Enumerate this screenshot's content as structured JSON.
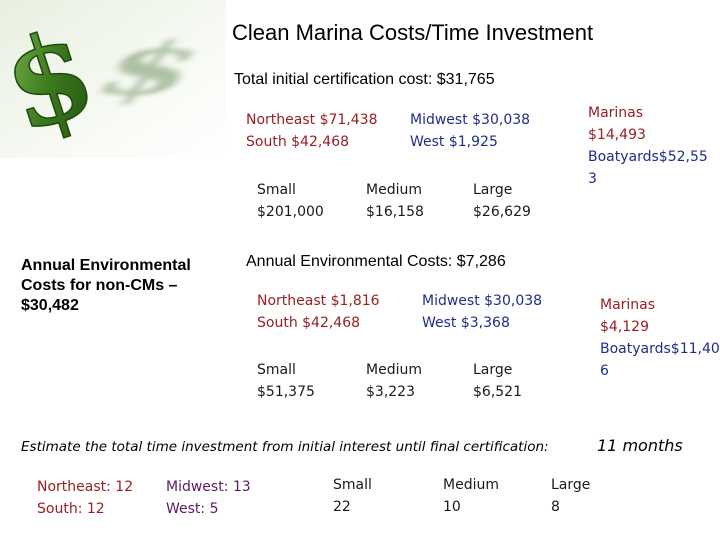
{
  "title": "Clean Marina Costs/Time Investment",
  "initial": {
    "heading": "Total initial certification cost: $31,765",
    "northeast": "Northeast $71,438",
    "south": "South $42,468",
    "midwest": "Midwest $30,038",
    "west": "West $1,925",
    "small_label": "Small",
    "small_value": "$201,000",
    "medium_label": "Medium",
    "medium_value": "$16,158",
    "large_label": "Large",
    "large_value": "$26,629",
    "marinas": "Marinas\n$14,493",
    "boatyards": "Boatyards$52,55\n3"
  },
  "annual_noncm": {
    "text": "Annual Environmental\nCosts for non-CMs –\n$30,482"
  },
  "annual": {
    "heading": "Annual Environmental Costs: $7,286",
    "northeast": "Northeast $1,816",
    "south": "South $42,468",
    "midwest": "Midwest $30,038",
    "west": "West $3,368",
    "small_label": "Small",
    "small_value": "$51,375",
    "medium_label": "Medium",
    "medium_value": "$3,223",
    "large_label": "Large",
    "large_value": "$6,521",
    "marinas": "Marinas\n$4,129",
    "boatyards": "Boatyards$11,40\n6"
  },
  "time": {
    "question": "Estimate the total time investment from initial interest until final certification:",
    "answer": "11 months",
    "northeast": "Northeast: 12",
    "south": "South: 12",
    "midwest": "Midwest: 13",
    "west": "West: 5",
    "small_label": "Small",
    "small_value": "22",
    "medium_label": "Medium",
    "medium_value": "10",
    "large_label": "Large",
    "large_value": "8"
  },
  "colors": {
    "red": "#9a1f22",
    "blue": "#1f2d8a",
    "purple": "#5b1a63",
    "dollar_green": "#3c7a1e"
  },
  "icons": [
    "dollar-sign-graphic"
  ]
}
